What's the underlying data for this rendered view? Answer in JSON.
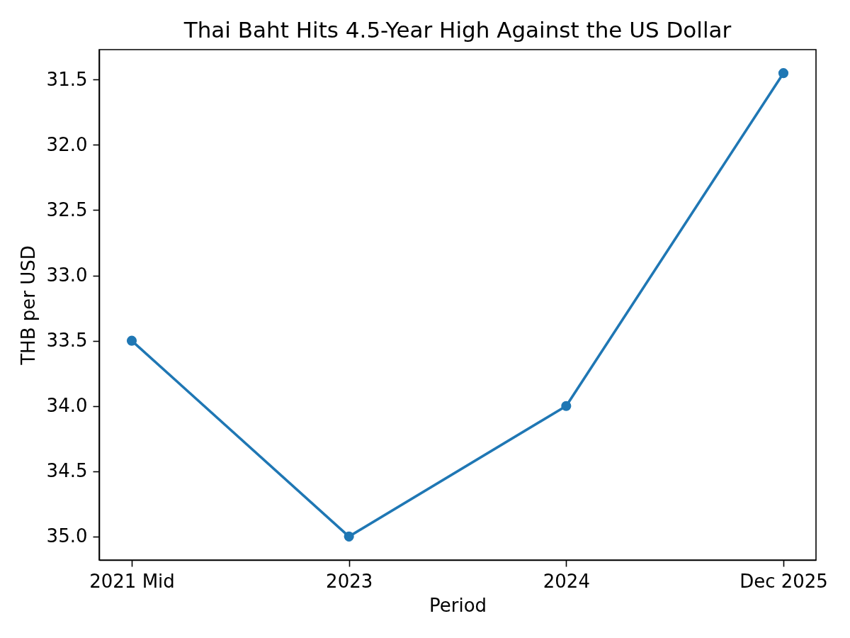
{
  "chart_data": {
    "type": "line",
    "title": "Thai Baht Hits 4.5-Year High Against the US Dollar",
    "xlabel": "Period",
    "ylabel": "THB per USD",
    "categories": [
      "2021 Mid",
      "2023",
      "2024",
      "Dec 2025"
    ],
    "values": [
      33.5,
      35.0,
      34.0,
      31.45
    ],
    "color": "#1f77b4",
    "ylim": [
      35.18,
      31.27
    ],
    "yticks": [
      31.5,
      {
        "value": 32,
        "label": "32.0"
      },
      32.5,
      {
        "value": 33,
        "label": "33.0"
      },
      33.5,
      {
        "value": 34,
        "label": "34.0"
      },
      34.5,
      {
        "value": 35,
        "label": "35.0"
      }
    ],
    "marker": "circle",
    "line_style": "solid"
  }
}
